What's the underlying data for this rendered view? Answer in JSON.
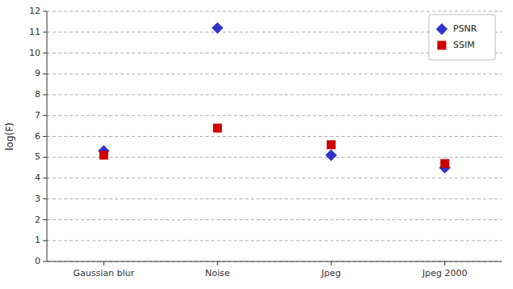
{
  "chart_data": {
    "type": "scatter",
    "categories": [
      "Gaussian blur",
      "Noise",
      "Jpeg",
      "Jpeg 2000"
    ],
    "series": [
      {
        "name": "PSNR",
        "color": "#3333CC",
        "marker": "diamond",
        "values": [
          5.3,
          11.2,
          5.1,
          4.5
        ]
      },
      {
        "name": "SSIM",
        "color": "#CC0000",
        "marker": "square",
        "values": [
          5.1,
          6.4,
          5.6,
          4.7
        ]
      }
    ],
    "y_label": "log(F)",
    "ylim": [
      0,
      12
    ],
    "yticks": [
      0,
      1,
      2,
      3,
      4,
      5,
      6,
      7,
      8,
      9,
      10,
      11,
      12
    ],
    "grid": true,
    "legend": "upper right"
  }
}
